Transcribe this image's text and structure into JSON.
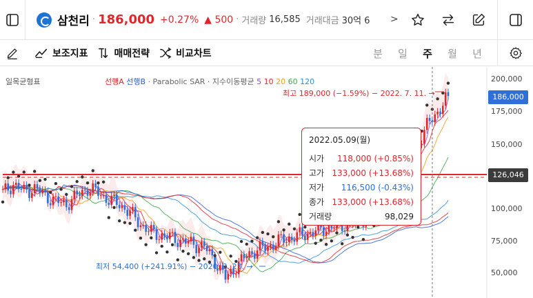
{
  "ticker": {
    "name": "삼천리",
    "price": "186,000",
    "change_pct": "+0.27%",
    "change_abs": "▲ 500",
    "volume_label": "거래량",
    "volume": "16,585",
    "amount_label": "거래대금",
    "amount": "30억 6",
    "more": ">"
  },
  "toolbar": {
    "indicator_label": "보조지표",
    "strategy_label": "매매전략",
    "compare_label": "비교차트",
    "periods": [
      "분",
      "일",
      "주",
      "월",
      "년"
    ],
    "active_period": "주"
  },
  "legend": {
    "name": "일목균형표",
    "lineA": "선행A",
    "lineB": "선행B",
    "sar": "· Parabolic SAR ·",
    "ma": "지수이동평균",
    "ma5": "5",
    "ma10": "10",
    "ma20": "20",
    "ma60": "60",
    "ma120": "120"
  },
  "tooltip": {
    "date": "2022.05.09(월)",
    "open_label": "시가",
    "open": "118,000 (+0.85%)",
    "high_label": "고가",
    "high": "133,000 (+13.68%)",
    "low_label": "저가",
    "low": "116,500 (-0.43%)",
    "close_label": "종가",
    "close": "133,000 (+13.68%)",
    "volume_label": "거래량",
    "volume": "98,029"
  },
  "annotations": {
    "high": "최고 189,000 (−1.59%) − 2022. 7. 11.",
    "low": "최저 54,400 (+241.91%) − 2020. 3. 23."
  },
  "price_axis": {
    "labels": [
      "200,000",
      "175,000",
      "150,000",
      "100,000",
      "75,000",
      "50,000"
    ],
    "current": "186,000",
    "line_value": "126,046"
  },
  "colors": {
    "up": "#e0252b",
    "down": "#2f6fd8",
    "current_tag": "#2f6fd8",
    "line_tag": "#3b3b3b"
  },
  "chart_data": {
    "type": "candlestick",
    "timeframe": "주",
    "x_range": [
      "2019",
      "2022-07"
    ],
    "y_range": [
      45000,
      205000
    ],
    "key_points": [
      {
        "label": "low",
        "date": "2020-03-23",
        "value": 54400
      },
      {
        "label": "high",
        "date": "2022-07-11",
        "value": 189000
      },
      {
        "label": "current",
        "value": 186000
      }
    ],
    "series_closes": [
      118000,
      124000,
      119000,
      121000,
      116000,
      112000,
      110000,
      116000,
      121000,
      118000,
      113000,
      110000,
      104000,
      96000,
      90000,
      88000,
      86000,
      84000,
      82000,
      80000,
      70000,
      58000,
      66000,
      74000,
      78000,
      80000,
      84000,
      86000,
      88000,
      90000,
      92000,
      94000,
      95000,
      97000,
      100000,
      104000,
      110000,
      120000,
      133000,
      150000,
      165000,
      175000,
      186000
    ]
  }
}
